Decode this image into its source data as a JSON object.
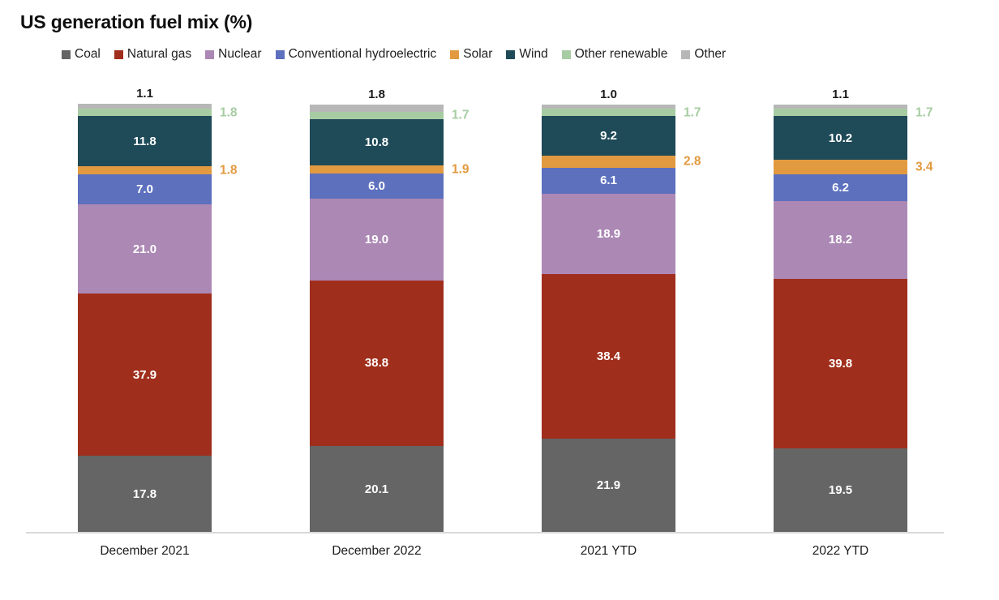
{
  "title": "US generation fuel mix (%)",
  "chart_data": {
    "type": "bar",
    "stacked": true,
    "title": "US generation fuel mix (%)",
    "categories": [
      "December 2021",
      "December 2022",
      "2021 YTD",
      "2022 YTD"
    ],
    "series": [
      {
        "name": "Coal",
        "color": "#656565",
        "label_style": "inside",
        "values": [
          17.8,
          20.1,
          21.9,
          19.5
        ]
      },
      {
        "name": "Natural gas",
        "color": "#A02E1C",
        "label_style": "inside",
        "values": [
          37.9,
          38.8,
          38.4,
          39.8
        ]
      },
      {
        "name": "Nuclear",
        "color": "#AC88B5",
        "label_style": "inside",
        "values": [
          21.0,
          19.0,
          18.9,
          18.2
        ]
      },
      {
        "name": "Conventional hydroelectric",
        "color": "#5C70BE",
        "label_style": "inside",
        "values": [
          7.0,
          6.0,
          6.1,
          6.2
        ]
      },
      {
        "name": "Solar",
        "color": "#E29A40",
        "label_style": "outside",
        "values": [
          1.8,
          1.9,
          2.8,
          3.4
        ]
      },
      {
        "name": "Wind",
        "color": "#1F4A58",
        "label_style": "inside",
        "values": [
          11.8,
          10.8,
          9.2,
          10.2
        ]
      },
      {
        "name": "Other renewable",
        "color": "#A7CCA3",
        "label_style": "outside",
        "values": [
          1.8,
          1.7,
          1.7,
          1.7
        ]
      },
      {
        "name": "Other",
        "color": "#B7B7B7",
        "label_style": "above",
        "values": [
          1.1,
          1.8,
          1.0,
          1.1
        ]
      }
    ],
    "value_format": "one_decimal",
    "ylim": [
      0,
      100
    ],
    "unit": "%",
    "legend_position": "top",
    "grid": false,
    "axis_line_color": "#d9d9d9"
  }
}
